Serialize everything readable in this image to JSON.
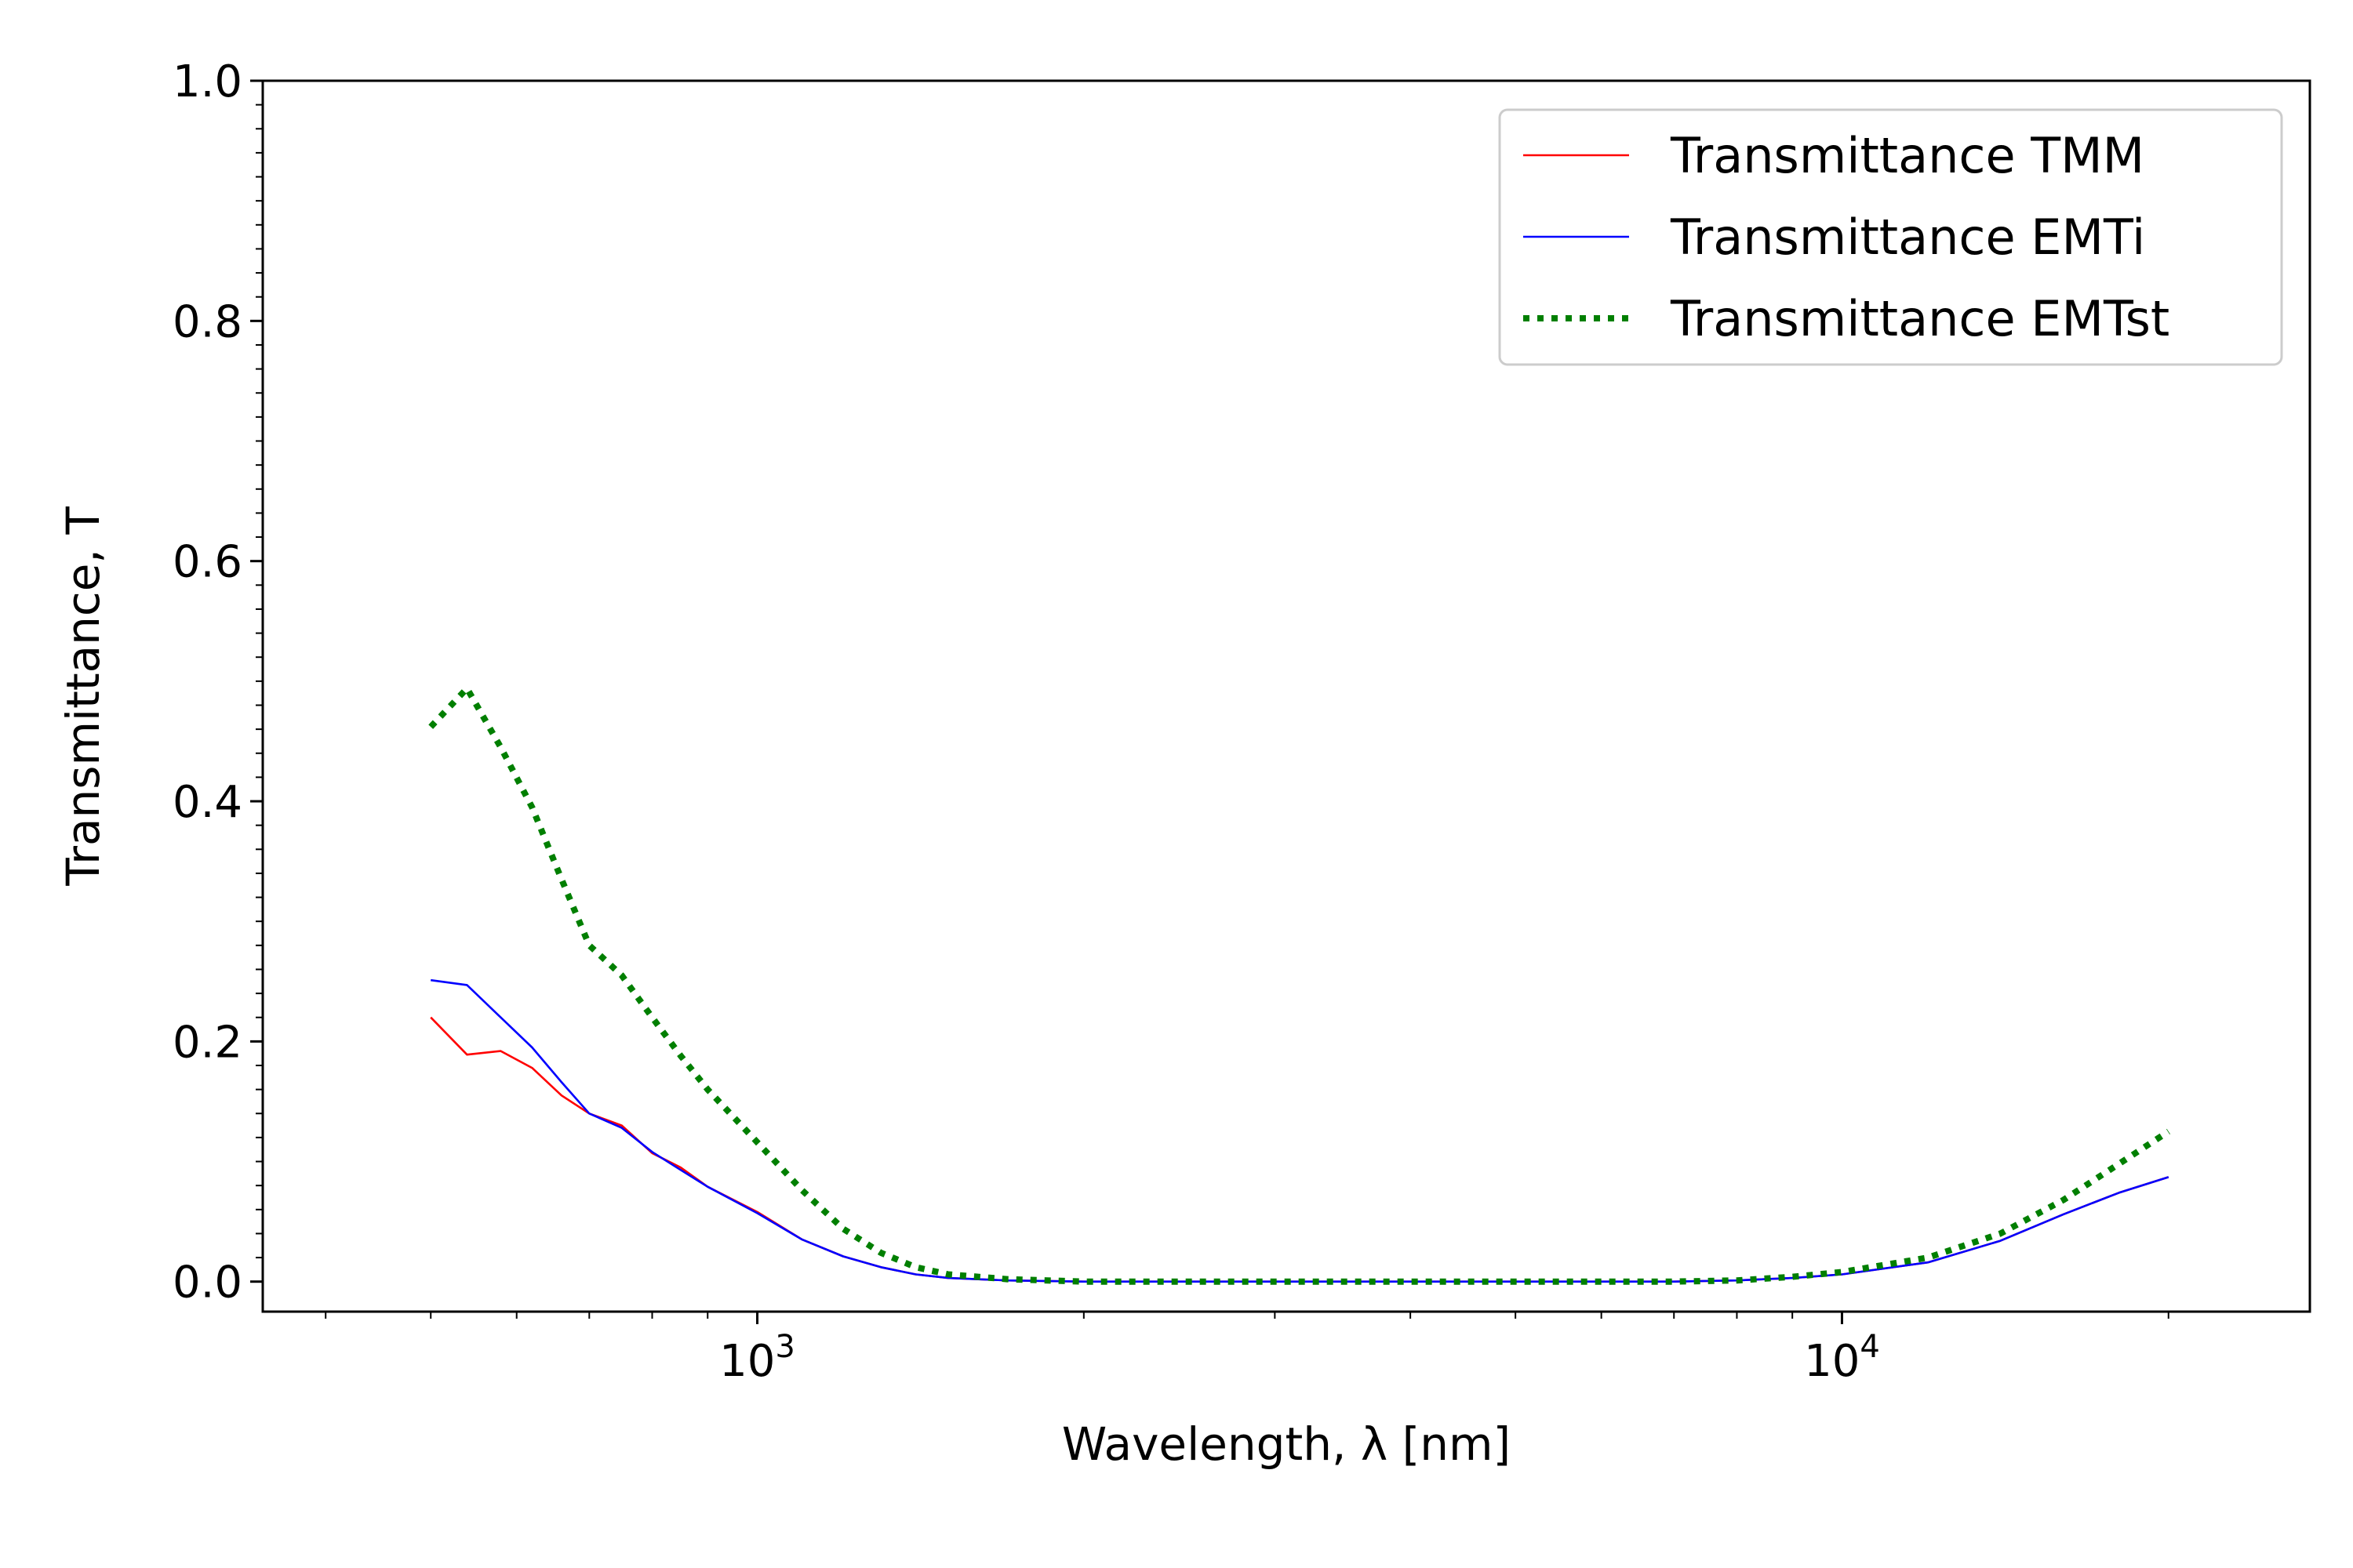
{
  "chart_data": {
    "type": "line",
    "title": "",
    "xlabel": "Wavelength, λ [nm]",
    "ylabel": "Transmittance, T",
    "xscale": "log",
    "xlim": [
      350,
      27000
    ],
    "ylim": [
      -0.025,
      1.0
    ],
    "xticks": [
      {
        "value": 1000,
        "base": "10",
        "exp": "3"
      },
      {
        "value": 10000,
        "base": "10",
        "exp": "4"
      }
    ],
    "yticks": [
      {
        "value": 0.0,
        "label": "0.0"
      },
      {
        "value": 0.2,
        "label": "0.2"
      },
      {
        "value": 0.4,
        "label": "0.4"
      },
      {
        "value": 0.6,
        "label": "0.6"
      },
      {
        "value": 0.8,
        "label": "0.8"
      },
      {
        "value": 1.0,
        "label": "1.0"
      }
    ],
    "grid": false,
    "legend_position": "top-right",
    "series": [
      {
        "name": "Transmittance TMM",
        "color": "#ff0000",
        "style": "solid",
        "x": [
          500,
          540,
          580,
          620,
          660,
          700,
          750,
          800,
          850,
          900,
          1000,
          1100,
          1200,
          1300,
          1400,
          1500,
          1700,
          2000,
          3000,
          5000,
          7000,
          8000,
          9000,
          10000,
          12000,
          14000,
          16000,
          18000,
          20000
        ],
        "y": [
          0.22,
          0.189,
          0.192,
          0.178,
          0.155,
          0.14,
          0.13,
          0.107,
          0.095,
          0.079,
          0.058,
          0.035,
          0.021,
          0.012,
          0.006,
          0.003,
          0.001,
          0.0,
          0.0,
          0.0,
          0.0,
          0.001,
          0.003,
          0.006,
          0.016,
          0.034,
          0.056,
          0.074,
          0.087
        ]
      },
      {
        "name": "Transmittance EMTi",
        "color": "#0000ff",
        "style": "solid",
        "x": [
          500,
          540,
          580,
          620,
          660,
          700,
          750,
          800,
          850,
          900,
          1000,
          1100,
          1200,
          1300,
          1400,
          1500,
          1700,
          2000,
          3000,
          5000,
          7000,
          8000,
          9000,
          10000,
          12000,
          14000,
          16000,
          18000,
          20000
        ],
        "y": [
          0.251,
          0.247,
          0.22,
          0.195,
          0.166,
          0.14,
          0.128,
          0.108,
          0.093,
          0.079,
          0.057,
          0.035,
          0.021,
          0.012,
          0.006,
          0.003,
          0.001,
          0.0,
          0.0,
          0.0,
          0.0,
          0.001,
          0.003,
          0.006,
          0.016,
          0.034,
          0.056,
          0.074,
          0.087
        ]
      },
      {
        "name": "Transmittance EMTst",
        "color": "#007f00",
        "style": "dotted",
        "x": [
          500,
          540,
          580,
          620,
          660,
          700,
          750,
          800,
          850,
          900,
          1000,
          1100,
          1200,
          1300,
          1400,
          1500,
          1700,
          2000,
          3000,
          5000,
          7000,
          8000,
          9000,
          10000,
          12000,
          14000,
          16000,
          18000,
          20000
        ],
        "y": [
          0.462,
          0.494,
          0.445,
          0.395,
          0.335,
          0.28,
          0.255,
          0.22,
          0.188,
          0.16,
          0.116,
          0.076,
          0.044,
          0.024,
          0.012,
          0.006,
          0.002,
          0.0,
          0.0,
          0.0,
          0.0,
          0.001,
          0.004,
          0.008,
          0.02,
          0.04,
          0.068,
          0.098,
          0.125
        ]
      }
    ]
  }
}
